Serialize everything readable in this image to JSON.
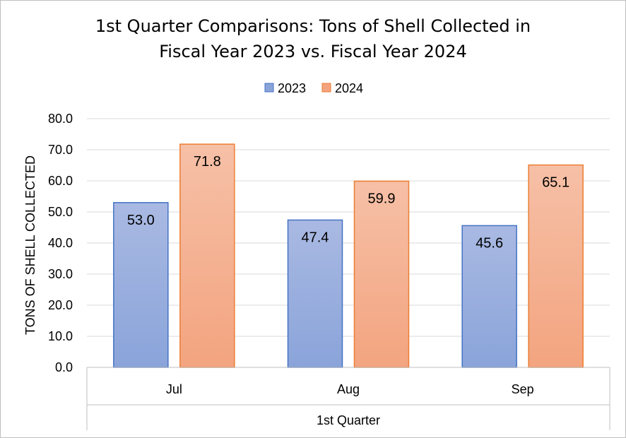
{
  "chart_data": {
    "type": "bar",
    "title_line1": "1st Quarter Comparisons: Tons of Shell Collected in",
    "title_line2": "Fiscal Year 2023 vs. Fiscal Year 2024",
    "categories": [
      "Jul",
      "Aug",
      "Sep"
    ],
    "group_label": "1st Quarter",
    "ylabel": "TONS OF SHELL COLLECTED",
    "xlabel": "",
    "ylim": [
      0,
      80
    ],
    "ytick_step": 10,
    "yticks": [
      "0.0",
      "10.0",
      "20.0",
      "30.0",
      "40.0",
      "50.0",
      "60.0",
      "70.0",
      "80.0"
    ],
    "grid": true,
    "legend_position": "top-center",
    "series": [
      {
        "name": "2023",
        "values": [
          53.0,
          47.4,
          45.6
        ],
        "labels": [
          "53.0",
          "47.4",
          "45.6"
        ]
      },
      {
        "name": "2024",
        "values": [
          71.8,
          59.9,
          65.1
        ],
        "labels": [
          "71.8",
          "59.9",
          "65.1"
        ]
      }
    ]
  },
  "colors": {
    "series_2023_top": "#a9b9e2",
    "series_2023_bottom": "#8aa4da",
    "series_2023_border": "#4472c4",
    "series_2024_top": "#f6c0a7",
    "series_2024_bottom": "#f3a47f",
    "series_2024_border": "#ed7d31",
    "gridline": "#d9d9d9",
    "axis": "#bfbfbf"
  }
}
